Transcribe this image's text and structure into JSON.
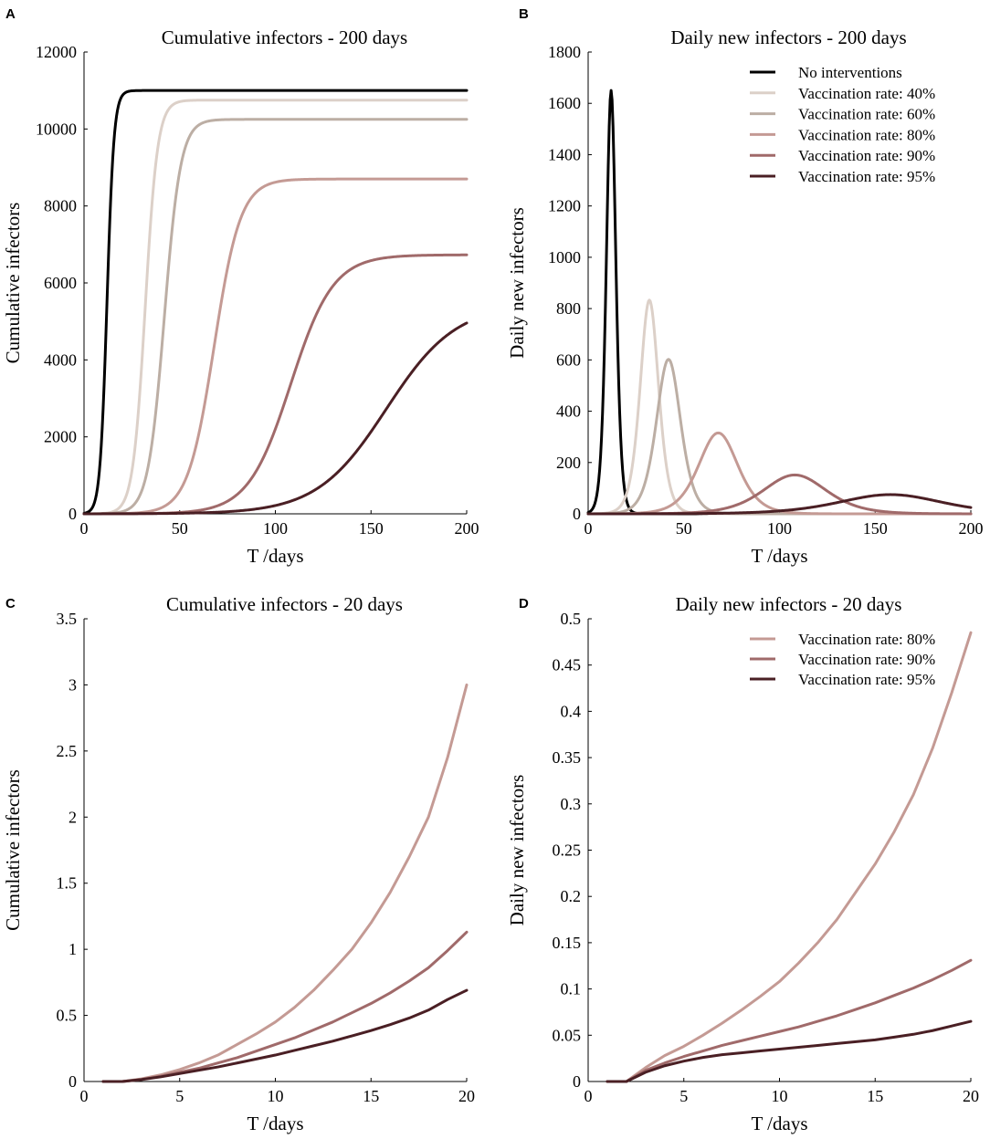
{
  "colors": {
    "no_interventions": "#000000",
    "vax40": "#dcd0c8",
    "vax60": "#bcaea4",
    "vax80": "#c49a94",
    "vax90": "#a06a6a",
    "vax95": "#4a1f24"
  },
  "chart_data": [
    {
      "panel": "A",
      "type": "line",
      "title": "Cumulative infectors - 200 days",
      "xlabel": "T /days",
      "ylabel": "Cumulative infectors",
      "xlim": [
        0,
        200
      ],
      "ylim": [
        0,
        12000
      ],
      "xticks": [
        0,
        50,
        100,
        150,
        200
      ],
      "yticks": [
        0,
        2000,
        4000,
        6000,
        8000,
        10000,
        12000
      ],
      "legend": "none",
      "series": [
        {
          "name": "No interventions",
          "color_key": "no_interventions",
          "shape": "logistic",
          "final": 11000,
          "midpoint": 12,
          "rate": 0.55
        },
        {
          "name": "Vaccination rate: 40%",
          "color_key": "vax40",
          "shape": "logistic",
          "final": 10750,
          "midpoint": 32,
          "rate": 0.31
        },
        {
          "name": "Vaccination rate: 60%",
          "color_key": "vax60",
          "shape": "logistic",
          "final": 10250,
          "midpoint": 42,
          "rate": 0.235
        },
        {
          "name": "Vaccination rate: 80%",
          "color_key": "vax80",
          "shape": "logistic",
          "final": 8700,
          "midpoint": 68,
          "rate": 0.145
        },
        {
          "name": "Vaccination rate: 90%",
          "color_key": "vax90",
          "shape": "logistic",
          "final": 6730,
          "midpoint": 108,
          "rate": 0.09
        },
        {
          "name": "Vaccination rate: 95%",
          "color_key": "vax95",
          "shape": "logistic",
          "final": 5450,
          "midpoint": 158,
          "rate": 0.055
        }
      ]
    },
    {
      "panel": "B",
      "type": "line",
      "title": "Daily new infectors - 200 days",
      "xlabel": "T /days",
      "ylabel": "Daily new infectors",
      "xlim": [
        0,
        200
      ],
      "ylim": [
        0,
        1800
      ],
      "xticks": [
        0,
        50,
        100,
        150,
        200
      ],
      "yticks": [
        0,
        200,
        400,
        600,
        800,
        1000,
        1200,
        1400,
        1600,
        1800
      ],
      "legend": "top-right",
      "series": [
        {
          "name": "No interventions",
          "color_key": "no_interventions",
          "shape": "logistic_derivative",
          "final": 11000,
          "midpoint": 12,
          "rate": 0.6
        },
        {
          "name": "Vaccination rate: 40%",
          "color_key": "vax40",
          "shape": "logistic_derivative",
          "final": 10750,
          "midpoint": 32,
          "rate": 0.31
        },
        {
          "name": "Vaccination rate: 60%",
          "color_key": "vax60",
          "shape": "logistic_derivative",
          "final": 10250,
          "midpoint": 42,
          "rate": 0.235
        },
        {
          "name": "Vaccination rate: 80%",
          "color_key": "vax80",
          "shape": "logistic_derivative",
          "final": 8700,
          "midpoint": 68,
          "rate": 0.145
        },
        {
          "name": "Vaccination rate: 90%",
          "color_key": "vax90",
          "shape": "logistic_derivative",
          "final": 6730,
          "midpoint": 108,
          "rate": 0.09
        },
        {
          "name": "Vaccination rate: 95%",
          "color_key": "vax95",
          "shape": "logistic_derivative",
          "final": 5450,
          "midpoint": 158,
          "rate": 0.055
        }
      ]
    },
    {
      "panel": "C",
      "type": "line",
      "title": "Cumulative infectors - 20 days",
      "xlabel": "T /days",
      "ylabel": "Cumulative infectors",
      "xlim": [
        0,
        20
      ],
      "ylim": [
        0,
        3.5
      ],
      "xticks": [
        0,
        5,
        10,
        15,
        20
      ],
      "yticks": [
        0,
        0.5,
        1,
        1.5,
        2,
        2.5,
        3,
        3.5
      ],
      "legend": "none",
      "series": [
        {
          "name": "Vaccination rate: 80%",
          "color_key": "vax80",
          "shape": "points",
          "x": [
            1,
            2,
            3,
            4,
            5,
            6,
            7,
            8,
            9,
            10,
            11,
            12,
            13,
            14,
            15,
            16,
            17,
            18,
            19,
            20
          ],
          "y": [
            0.0,
            0.0,
            0.02,
            0.05,
            0.09,
            0.14,
            0.2,
            0.28,
            0.36,
            0.45,
            0.56,
            0.69,
            0.84,
            1.0,
            1.2,
            1.43,
            1.7,
            2.0,
            2.45,
            3.0
          ]
        },
        {
          "name": "Vaccination rate: 90%",
          "color_key": "vax90",
          "shape": "points",
          "x": [
            1,
            2,
            3,
            4,
            5,
            6,
            7,
            8,
            9,
            10,
            11,
            12,
            13,
            14,
            15,
            16,
            17,
            18,
            19,
            20
          ],
          "y": [
            0.0,
            0.0,
            0.015,
            0.04,
            0.07,
            0.1,
            0.14,
            0.18,
            0.23,
            0.28,
            0.33,
            0.39,
            0.45,
            0.52,
            0.59,
            0.67,
            0.76,
            0.86,
            0.99,
            1.13
          ]
        },
        {
          "name": "Vaccination rate: 95%",
          "color_key": "vax95",
          "shape": "points",
          "x": [
            1,
            2,
            3,
            4,
            5,
            6,
            7,
            8,
            9,
            10,
            11,
            12,
            13,
            14,
            15,
            16,
            17,
            18,
            19,
            20
          ],
          "y": [
            0.0,
            0.0,
            0.015,
            0.035,
            0.06,
            0.085,
            0.11,
            0.14,
            0.17,
            0.2,
            0.235,
            0.27,
            0.305,
            0.345,
            0.385,
            0.43,
            0.48,
            0.54,
            0.62,
            0.69
          ]
        }
      ]
    },
    {
      "panel": "D",
      "type": "line",
      "title": "Daily new infectors - 20 days",
      "xlabel": "T /days",
      "ylabel": "Daily new infectors",
      "xlim": [
        0,
        20
      ],
      "ylim": [
        0,
        0.5
      ],
      "xticks": [
        0,
        5,
        10,
        15,
        20
      ],
      "yticks": [
        0,
        0.05,
        0.1,
        0.15,
        0.2,
        0.25,
        0.3,
        0.35,
        0.4,
        0.45,
        0.5
      ],
      "legend": "top-right",
      "series": [
        {
          "name": "Vaccination rate: 80%",
          "color_key": "vax80",
          "shape": "points",
          "x": [
            1,
            2,
            3,
            4,
            5,
            6,
            7,
            8,
            9,
            10,
            11,
            12,
            13,
            14,
            15,
            16,
            17,
            18,
            19,
            20
          ],
          "y": [
            0.0,
            0.0,
            0.015,
            0.028,
            0.038,
            0.05,
            0.063,
            0.077,
            0.092,
            0.108,
            0.128,
            0.15,
            0.175,
            0.205,
            0.235,
            0.27,
            0.31,
            0.36,
            0.42,
            0.485
          ]
        },
        {
          "name": "Vaccination rate: 90%",
          "color_key": "vax90",
          "shape": "points",
          "x": [
            1,
            2,
            3,
            4,
            5,
            6,
            7,
            8,
            9,
            10,
            11,
            12,
            13,
            14,
            15,
            16,
            17,
            18,
            19,
            20
          ],
          "y": [
            0.0,
            0.0,
            0.012,
            0.02,
            0.027,
            0.033,
            0.039,
            0.044,
            0.049,
            0.054,
            0.059,
            0.065,
            0.071,
            0.078,
            0.085,
            0.093,
            0.101,
            0.11,
            0.12,
            0.131
          ]
        },
        {
          "name": "Vaccination rate: 95%",
          "color_key": "vax95",
          "shape": "points",
          "x": [
            1,
            2,
            3,
            4,
            5,
            6,
            7,
            8,
            9,
            10,
            11,
            12,
            13,
            14,
            15,
            16,
            17,
            18,
            19,
            20
          ],
          "y": [
            0.0,
            0.0,
            0.01,
            0.017,
            0.022,
            0.026,
            0.029,
            0.031,
            0.033,
            0.035,
            0.037,
            0.039,
            0.041,
            0.043,
            0.045,
            0.048,
            0.051,
            0.055,
            0.06,
            0.065
          ]
        }
      ]
    }
  ]
}
